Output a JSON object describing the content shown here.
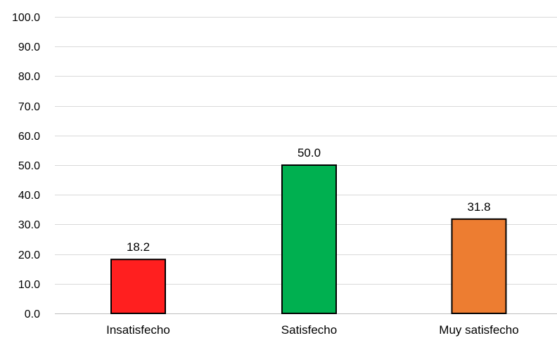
{
  "chart_data": {
    "type": "bar",
    "title": "",
    "xlabel": "",
    "ylabel": "",
    "categories": [
      "Insatisfecho",
      "Satisfecho",
      "Muy satisfecho"
    ],
    "values": [
      18.2,
      50.0,
      31.8
    ],
    "value_labels": [
      "18.2",
      "50.0",
      "31.8"
    ],
    "colors": [
      "#ff1f1f",
      "#00b050",
      "#ed7d31"
    ],
    "ylim": [
      0,
      100
    ],
    "yticks": [
      0,
      10,
      20,
      30,
      40,
      50,
      60,
      70,
      80,
      90,
      100
    ],
    "ytick_labels": [
      "0.0",
      "10.0",
      "20.0",
      "30.0",
      "40.0",
      "50.0",
      "60.0",
      "70.0",
      "80.0",
      "90.0",
      "100.0"
    ],
    "grid": true,
    "legend": "none"
  }
}
